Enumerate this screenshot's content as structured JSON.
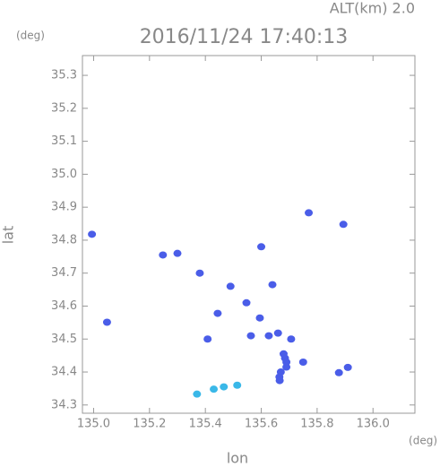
{
  "chart_data": {
    "type": "scatter",
    "title": "2016/11/24 17:40:13",
    "altitude_label": "ALT(km) 2.0",
    "y_unit": "(deg)",
    "x_unit": "(deg)",
    "xlabel": "lon",
    "ylabel": "lat",
    "xlim": [
      134.96,
      136.15
    ],
    "ylim": [
      34.275,
      35.36
    ],
    "xticks": [
      {
        "value": 135.0,
        "label": "135.0"
      },
      135.2,
      135.4,
      135.6,
      135.8,
      {
        "value": 136.0,
        "label": "136.0"
      }
    ],
    "yticks": [
      35.3,
      35.2,
      35.1,
      {
        "value": 35.0,
        "label": "35.0"
      },
      34.9,
      34.8,
      34.7,
      34.6,
      34.5,
      34.4,
      34.3
    ],
    "series": [
      {
        "color": "#4a5de8",
        "x": [
          134.994,
          135.048,
          135.248,
          135.3,
          135.6,
          135.77,
          135.894,
          135.38,
          135.49,
          135.547,
          135.64,
          135.444,
          135.595,
          135.563,
          135.408,
          135.66,
          135.707,
          135.685,
          135.67,
          135.666,
          135.75,
          135.878,
          135.91,
          135.627,
          135.68,
          135.69,
          135.665,
          135.69
        ],
        "y": [
          34.818,
          34.551,
          34.755,
          34.76,
          34.78,
          34.883,
          34.848,
          34.7,
          34.66,
          34.61,
          34.665,
          34.578,
          34.564,
          34.51,
          34.5,
          34.518,
          34.5,
          34.442,
          34.4,
          34.374,
          34.43,
          34.398,
          34.414,
          34.51,
          34.455,
          34.415,
          34.385,
          34.43
        ]
      },
      {
        "color": "#3ab8e8",
        "x": [
          135.466,
          135.514,
          135.37,
          135.43
        ],
        "y": [
          34.355,
          34.36,
          34.333,
          34.348
        ]
      }
    ]
  }
}
